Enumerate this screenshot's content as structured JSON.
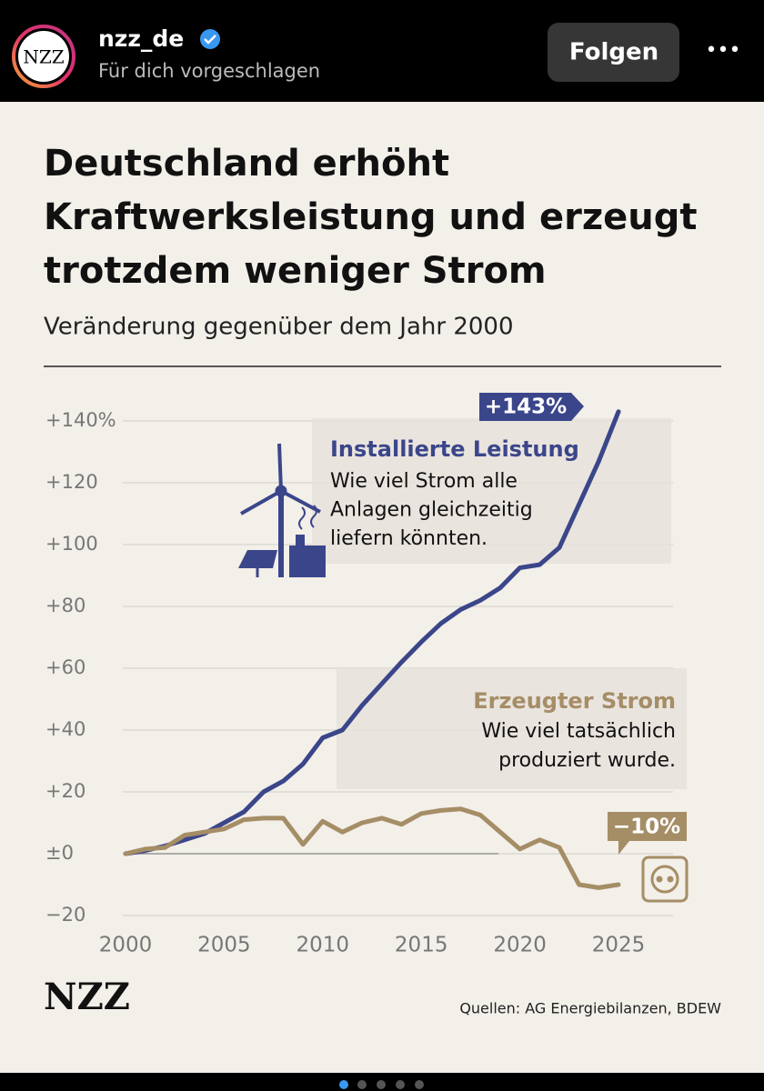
{
  "header": {
    "logo": "NZZ",
    "account": "nzz_de",
    "subtitle": "Für dich vorgeschlagen",
    "button": "Folgen",
    "menu": "•••"
  },
  "chart_data": {
    "type": "line",
    "title_lines": [
      "Deutschland erhöht",
      "Kraftwerksleistung und erzeugt",
      "trotzdem weniger Strom"
    ],
    "subtitle": "Veränderung gegenüber dem Jahr 2000",
    "x": [
      2000,
      2001,
      2002,
      2003,
      2004,
      2005,
      2006,
      2007,
      2008,
      2009,
      2010,
      2011,
      2012,
      2013,
      2014,
      2015,
      2016,
      2017,
      2018,
      2019,
      2020,
      2021,
      2022,
      2023,
      2024,
      2025
    ],
    "xlim": [
      2000,
      2025
    ],
    "xticks": [
      2000,
      2005,
      2010,
      2015,
      2020,
      2025
    ],
    "ylim": [
      -20,
      145
    ],
    "yticks": [
      {
        "value": 140,
        "label": "+140%"
      },
      {
        "value": 120,
        "label": "+120"
      },
      {
        "value": 100,
        "label": "+100"
      },
      {
        "value": 80,
        "label": "+80"
      },
      {
        "value": 60,
        "label": "+60"
      },
      {
        "value": 40,
        "label": "+40"
      },
      {
        "value": 20,
        "label": "+20"
      },
      {
        "value": 0,
        "label": "±0"
      },
      {
        "value": -20,
        "label": "−20"
      }
    ],
    "grid": true,
    "series": [
      {
        "name": "Installierte Leistung",
        "color": "#3b468a",
        "description": [
          "Wie viel Strom alle",
          "Anlagen gleichzeitig",
          "liefern könnten."
        ],
        "end_label": "+143%",
        "values": [
          0,
          1,
          2.5,
          4.5,
          6.5,
          10,
          13.5,
          20,
          23.5,
          29,
          37.5,
          40,
          48,
          55,
          62,
          68.5,
          74.5,
          79,
          82,
          86,
          92.5,
          93.5,
          99,
          113,
          127,
          143
        ]
      },
      {
        "name": "Erzeugter Strom",
        "color": "#a58d66",
        "description": [
          "Wie viel tatsächlich",
          "produziert wurde."
        ],
        "end_label": "−10%",
        "values": [
          0,
          1.5,
          2,
          6,
          7,
          8,
          11,
          11.5,
          11.5,
          3,
          10.5,
          7,
          10,
          11.5,
          9.5,
          13,
          14,
          14.5,
          12.5,
          7,
          1.5,
          4.5,
          2,
          -10,
          -11,
          -10
        ]
      }
    ]
  },
  "footer": {
    "logo": "NZZ",
    "source": "Quellen: AG Energiebilanzen, BDEW"
  }
}
